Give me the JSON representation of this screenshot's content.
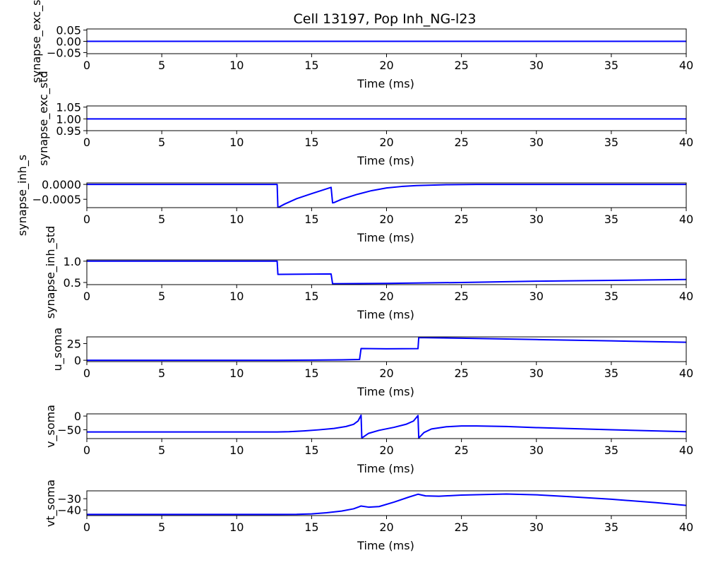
{
  "title": "Cell 13197, Pop Inh_NG-l23",
  "line_color": "#0000ff",
  "chart_data": [
    {
      "type": "line",
      "ylabel": "synapse_exc_s",
      "xlabel": "Time (ms)",
      "xlim": [
        0,
        40
      ],
      "ylim": [
        -0.055,
        0.055
      ],
      "xticks": [
        0,
        5,
        10,
        15,
        20,
        25,
        30,
        35,
        40
      ],
      "xtick_labels": [
        "0",
        "5",
        "10",
        "15",
        "20",
        "25",
        "30",
        "35",
        "40"
      ],
      "yticks": [
        -0.05,
        0.0,
        0.05
      ],
      "ytick_labels": [
        "−0.05",
        "0.00",
        "0.05"
      ],
      "series": [
        {
          "x": [
            0,
            40
          ],
          "y": [
            0,
            0
          ]
        }
      ]
    },
    {
      "type": "line",
      "ylabel": "synapse_exc_std",
      "xlabel": "Time (ms)",
      "xlim": [
        0,
        40
      ],
      "ylim": [
        0.95,
        1.055
      ],
      "xticks": [
        0,
        5,
        10,
        15,
        20,
        25,
        30,
        35,
        40
      ],
      "xtick_labels": [
        "0",
        "5",
        "10",
        "15",
        "20",
        "25",
        "30",
        "35",
        "40"
      ],
      "yticks": [
        0.95,
        1.0,
        1.05
      ],
      "ytick_labels": [
        "0.95",
        "1.00",
        "1.05"
      ],
      "series": [
        {
          "x": [
            0,
            40
          ],
          "y": [
            1,
            1
          ]
        }
      ]
    },
    {
      "type": "line",
      "ylabel": "synapse_inh_s",
      "xlabel": "Time (ms)",
      "xlim": [
        0,
        40
      ],
      "ylim": [
        -0.00078,
        5e-05
      ],
      "xticks": [
        0,
        5,
        10,
        15,
        20,
        25,
        30,
        35,
        40
      ],
      "xtick_labels": [
        "0",
        "5",
        "10",
        "15",
        "20",
        "25",
        "30",
        "35",
        "40"
      ],
      "yticks": [
        0.0,
        -0.0005
      ],
      "ytick_labels": [
        "0.0000",
        "−0.0005"
      ],
      "series": [
        {
          "x": [
            0,
            12.7,
            12.75,
            13.2,
            14,
            15,
            16.3,
            16.4,
            16.5,
            17,
            18,
            19,
            20,
            21,
            22,
            24,
            26,
            30,
            40
          ],
          "y": [
            0,
            0,
            -0.00078,
            -0.00066,
            -0.00048,
            -0.00031,
            -0.0001,
            -0.00062,
            -0.00061,
            -0.0005,
            -0.00034,
            -0.00021,
            -0.00012,
            -7e-05,
            -4e-05,
            -1e-05,
            0,
            0,
            0
          ]
        }
      ]
    },
    {
      "type": "line",
      "ylabel": "synapse_inh_std",
      "xlabel": "Time (ms)",
      "xlim": [
        0,
        40
      ],
      "ylim": [
        0.45,
        1.03
      ],
      "xticks": [
        0,
        5,
        10,
        15,
        20,
        25,
        30,
        35,
        40
      ],
      "xtick_labels": [
        "0",
        "5",
        "10",
        "15",
        "20",
        "25",
        "30",
        "35",
        "40"
      ],
      "yticks": [
        0.5,
        1.0
      ],
      "ytick_labels": [
        "0.5",
        "1.0"
      ],
      "series": [
        {
          "x": [
            0,
            12.7,
            12.75,
            16.3,
            16.4,
            20,
            25,
            30,
            35,
            40
          ],
          "y": [
            1.0,
            1.0,
            0.69,
            0.7,
            0.47,
            0.48,
            0.5,
            0.53,
            0.55,
            0.57
          ]
        }
      ]
    },
    {
      "type": "line",
      "ylabel": "u_soma",
      "xlabel": "Time (ms)",
      "xlim": [
        0,
        40
      ],
      "ylim": [
        -2,
        35
      ],
      "xticks": [
        0,
        5,
        10,
        15,
        20,
        25,
        30,
        35,
        40
      ],
      "xtick_labels": [
        "0",
        "5",
        "10",
        "15",
        "20",
        "25",
        "30",
        "35",
        "40"
      ],
      "yticks": [
        0,
        25
      ],
      "ytick_labels": [
        "0",
        "25"
      ],
      "series": [
        {
          "x": [
            0,
            12.7,
            15,
            17,
            18.2,
            18.3,
            20,
            22.1,
            22.15,
            25,
            30,
            35,
            40
          ],
          "y": [
            0,
            0,
            0.2,
            0.6,
            1.2,
            17.5,
            17.2,
            17.4,
            34,
            33,
            31,
            29,
            27
          ]
        }
      ]
    },
    {
      "type": "line",
      "ylabel": "v_soma",
      "xlabel": "Time (ms)",
      "xlim": [
        0,
        40
      ],
      "ylim": [
        -82,
        8
      ],
      "xticks": [
        0,
        5,
        10,
        15,
        20,
        25,
        30,
        35,
        40
      ],
      "xtick_labels": [
        "0",
        "5",
        "10",
        "15",
        "20",
        "25",
        "30",
        "35",
        "40"
      ],
      "yticks": [
        0,
        -50
      ],
      "ytick_labels": [
        "0",
        "−50"
      ],
      "series": [
        {
          "x": [
            0,
            12.7,
            13.5,
            14.5,
            15.5,
            16.5,
            17.3,
            17.8,
            18.1,
            18.3,
            18.35,
            18.8,
            19.5,
            20.5,
            21.3,
            21.8,
            22.1,
            22.15,
            22.5,
            23,
            24,
            25,
            26,
            28,
            30,
            35,
            40
          ],
          "y": [
            -58,
            -58,
            -57,
            -54,
            -50,
            -45,
            -38,
            -30,
            -18,
            3,
            -80,
            -63,
            -52,
            -41,
            -30,
            -18,
            2,
            -80,
            -60,
            -47,
            -39,
            -36,
            -36,
            -38,
            -42,
            -50,
            -57
          ]
        }
      ]
    },
    {
      "type": "line",
      "ylabel": "vt_soma",
      "xlabel": "Time (ms)",
      "xlim": [
        0,
        40
      ],
      "ylim": [
        -45,
        -23
      ],
      "xticks": [
        0,
        5,
        10,
        15,
        20,
        25,
        30,
        35,
        40
      ],
      "xtick_labels": [
        "0",
        "5",
        "10",
        "15",
        "20",
        "25",
        "30",
        "35",
        "40"
      ],
      "yticks": [
        -30,
        -40
      ],
      "ytick_labels": [
        "−30",
        "−40"
      ],
      "series": [
        {
          "x": [
            0,
            12.7,
            14,
            15,
            16,
            17,
            17.8,
            18.3,
            18.8,
            19.5,
            20.5,
            21.5,
            22.1,
            22.6,
            23.5,
            25,
            28,
            30,
            32,
            35,
            38,
            40
          ],
          "y": [
            -44,
            -44,
            -43.9,
            -43.5,
            -42.5,
            -41,
            -39,
            -36.5,
            -37.5,
            -37,
            -33,
            -28.5,
            -26,
            -27.5,
            -27.8,
            -26.8,
            -25.8,
            -26.5,
            -28,
            -30.5,
            -33.5,
            -36
          ]
        }
      ]
    }
  ]
}
